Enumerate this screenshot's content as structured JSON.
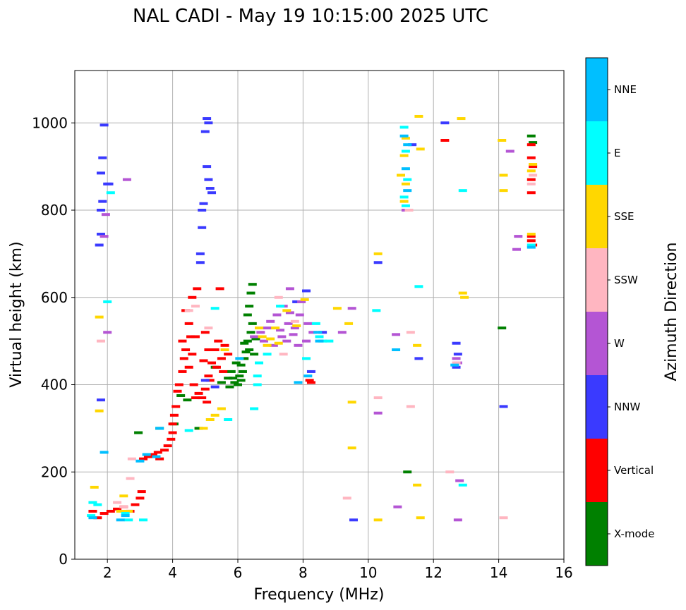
{
  "chart_data": {
    "type": "scatter",
    "title": "NAL CADI - May 19 10:15:00 2025 UTC",
    "xlabel": "Frequency (MHz)",
    "ylabel": "Virtual height (km)",
    "xlim": [
      1,
      16
    ],
    "ylim": [
      0,
      1120
    ],
    "xticks": [
      2,
      4,
      6,
      8,
      10,
      12,
      14,
      16
    ],
    "xtick_labels": [
      "2",
      "4",
      "6",
      "8",
      "10",
      "12",
      "14",
      "16"
    ],
    "yticks": [
      0,
      200,
      400,
      600,
      800,
      1000
    ],
    "ytick_labels": [
      "0",
      "200",
      "400",
      "600",
      "800",
      "1000"
    ],
    "grid": true,
    "colorbar": {
      "label": "Azimuth Direction",
      "categories": [
        "X-mode",
        "Vertical",
        "NNW",
        "W",
        "SSW",
        "SSE",
        "E",
        "NNE"
      ],
      "colors": [
        "#008000",
        "#ff0000",
        "#3a3aff",
        "#b455d4",
        "#ffb6c1",
        "#ffd700",
        "#00ffff",
        "#00bfff"
      ]
    },
    "series": [
      {
        "name": "X-mode",
        "points": [
          [
            2.95,
            290
          ],
          [
            3.6,
            300
          ],
          [
            4.05,
            310
          ],
          [
            4.25,
            375
          ],
          [
            4.45,
            365
          ],
          [
            4.8,
            300
          ],
          [
            5.3,
            440
          ],
          [
            5.5,
            405
          ],
          [
            5.7,
            415
          ],
          [
            5.75,
            395
          ],
          [
            5.8,
            430
          ],
          [
            5.9,
            405
          ],
          [
            6.0,
            400
          ],
          [
            6.05,
            420
          ],
          [
            6.1,
            445
          ],
          [
            6.2,
            460
          ],
          [
            6.25,
            475
          ],
          [
            6.35,
            480
          ],
          [
            6.4,
            520
          ],
          [
            6.45,
            540
          ],
          [
            6.3,
            560
          ],
          [
            6.35,
            580
          ],
          [
            6.4,
            610
          ],
          [
            6.45,
            630
          ],
          [
            6.2,
            495
          ],
          [
            6.3,
            500
          ],
          [
            6.5,
            470
          ],
          [
            6.55,
            505
          ],
          [
            6.1,
            410
          ],
          [
            5.95,
            450
          ],
          [
            6.15,
            430
          ],
          [
            5.85,
            415
          ],
          [
            11.2,
            200
          ],
          [
            14.1,
            530
          ],
          [
            15.0,
            970
          ],
          [
            15.05,
            955
          ]
        ]
      },
      {
        "name": "Vertical",
        "points": [
          [
            1.55,
            110
          ],
          [
            1.7,
            95
          ],
          [
            1.9,
            105
          ],
          [
            2.1,
            110
          ],
          [
            2.3,
            115
          ],
          [
            2.5,
            120
          ],
          [
            2.7,
            110
          ],
          [
            2.85,
            125
          ],
          [
            3.0,
            140
          ],
          [
            3.05,
            155
          ],
          [
            3.1,
            230
          ],
          [
            3.25,
            235
          ],
          [
            3.4,
            240
          ],
          [
            3.55,
            245
          ],
          [
            3.6,
            230
          ],
          [
            3.75,
            250
          ],
          [
            3.85,
            260
          ],
          [
            3.95,
            275
          ],
          [
            4.0,
            290
          ],
          [
            4.0,
            310
          ],
          [
            4.05,
            330
          ],
          [
            4.1,
            350
          ],
          [
            4.15,
            385
          ],
          [
            4.2,
            400
          ],
          [
            4.3,
            430
          ],
          [
            4.35,
            460
          ],
          [
            4.4,
            480
          ],
          [
            4.5,
            440
          ],
          [
            4.55,
            510
          ],
          [
            4.6,
            470
          ],
          [
            4.65,
            400
          ],
          [
            4.7,
            370
          ],
          [
            4.8,
            380
          ],
          [
            4.9,
            370
          ],
          [
            5.0,
            390
          ],
          [
            5.05,
            360
          ],
          [
            5.1,
            420
          ],
          [
            5.2,
            450
          ],
          [
            5.3,
            480
          ],
          [
            5.4,
            500
          ],
          [
            5.5,
            460
          ],
          [
            5.55,
            430
          ],
          [
            5.6,
            490
          ],
          [
            5.7,
            470
          ],
          [
            4.6,
            600
          ],
          [
            4.75,
            620
          ],
          [
            4.5,
            540
          ],
          [
            4.3,
            500
          ],
          [
            4.7,
            510
          ],
          [
            4.95,
            455
          ],
          [
            5.15,
            410
          ],
          [
            5.45,
            620
          ],
          [
            4.4,
            570
          ],
          [
            5.0,
            520
          ],
          [
            5.1,
            480
          ],
          [
            5.35,
            440
          ],
          [
            8.2,
            410
          ],
          [
            8.25,
            405
          ],
          [
            12.35,
            960
          ],
          [
            15.0,
            950
          ],
          [
            15.0,
            920
          ],
          [
            15.05,
            900
          ],
          [
            15.0,
            870
          ],
          [
            15.0,
            840
          ],
          [
            15.0,
            740
          ],
          [
            15.0,
            730
          ],
          [
            15.05,
            720
          ]
        ]
      },
      {
        "name": "NNW",
        "points": [
          [
            1.75,
            720
          ],
          [
            1.8,
            745
          ],
          [
            1.8,
            800
          ],
          [
            1.85,
            820
          ],
          [
            1.8,
            885
          ],
          [
            1.85,
            920
          ],
          [
            1.9,
            995
          ],
          [
            2.0,
            860
          ],
          [
            2.05,
            860
          ],
          [
            1.8,
            365
          ],
          [
            5.05,
            1010
          ],
          [
            5.1,
            1000
          ],
          [
            5.0,
            980
          ],
          [
            5.05,
            900
          ],
          [
            5.1,
            870
          ],
          [
            5.15,
            850
          ],
          [
            5.2,
            840
          ],
          [
            4.95,
            815
          ],
          [
            4.9,
            800
          ],
          [
            4.9,
            760
          ],
          [
            4.85,
            700
          ],
          [
            4.85,
            680
          ],
          [
            5.0,
            410
          ],
          [
            5.3,
            395
          ],
          [
            7.8,
            590
          ],
          [
            8.25,
            430
          ],
          [
            8.1,
            615
          ],
          [
            8.6,
            520
          ],
          [
            9.55,
            90
          ],
          [
            10.3,
            680
          ],
          [
            11.35,
            950
          ],
          [
            11.55,
            460
          ],
          [
            12.35,
            1000
          ],
          [
            12.7,
            495
          ],
          [
            12.7,
            440
          ],
          [
            12.75,
            470
          ],
          [
            14.15,
            350
          ]
        ]
      },
      {
        "name": "W",
        "points": [
          [
            1.9,
            740
          ],
          [
            1.95,
            790
          ],
          [
            2.6,
            870
          ],
          [
            2.0,
            520
          ],
          [
            6.5,
            510
          ],
          [
            6.7,
            520
          ],
          [
            6.8,
            500
          ],
          [
            6.9,
            530
          ],
          [
            7.0,
            545
          ],
          [
            7.1,
            490
          ],
          [
            7.2,
            560
          ],
          [
            7.3,
            525
          ],
          [
            7.35,
            510
          ],
          [
            7.4,
            580
          ],
          [
            7.5,
            500
          ],
          [
            7.55,
            540
          ],
          [
            7.6,
            565
          ],
          [
            7.7,
            515
          ],
          [
            7.75,
            530
          ],
          [
            7.85,
            490
          ],
          [
            7.9,
            560
          ],
          [
            7.95,
            590
          ],
          [
            7.6,
            620
          ],
          [
            8.1,
            500
          ],
          [
            8.15,
            540
          ],
          [
            8.3,
            520
          ],
          [
            9.2,
            520
          ],
          [
            9.5,
            575
          ],
          [
            10.3,
            335
          ],
          [
            10.85,
            515
          ],
          [
            10.9,
            120
          ],
          [
            11.15,
            800
          ],
          [
            12.7,
            460
          ],
          [
            12.75,
            450
          ],
          [
            12.8,
            180
          ],
          [
            12.75,
            90
          ],
          [
            14.35,
            935
          ],
          [
            14.55,
            710
          ],
          [
            14.6,
            740
          ]
        ]
      },
      {
        "name": "SSW",
        "points": [
          [
            1.8,
            500
          ],
          [
            2.5,
            120
          ],
          [
            2.7,
            185
          ],
          [
            2.75,
            230
          ],
          [
            2.3,
            130
          ],
          [
            4.5,
            570
          ],
          [
            4.7,
            580
          ],
          [
            5.1,
            530
          ],
          [
            7.25,
            600
          ],
          [
            7.4,
            470
          ],
          [
            7.75,
            545
          ],
          [
            9.35,
            140
          ],
          [
            10.3,
            370
          ],
          [
            11.3,
            520
          ],
          [
            11.3,
            350
          ],
          [
            11.25,
            800
          ],
          [
            12.5,
            200
          ],
          [
            12.7,
            450
          ],
          [
            14.15,
            95
          ],
          [
            15.0,
            860
          ],
          [
            15.05,
            880
          ]
        ]
      },
      {
        "name": "SSE",
        "points": [
          [
            1.6,
            165
          ],
          [
            1.75,
            555
          ],
          [
            1.75,
            340
          ],
          [
            2.4,
            110
          ],
          [
            2.5,
            145
          ],
          [
            2.65,
            110
          ],
          [
            4.95,
            300
          ],
          [
            5.15,
            320
          ],
          [
            5.3,
            330
          ],
          [
            5.5,
            345
          ],
          [
            5.6,
            480
          ],
          [
            6.65,
            530
          ],
          [
            6.75,
            510
          ],
          [
            6.9,
            490
          ],
          [
            7.0,
            505
          ],
          [
            7.15,
            530
          ],
          [
            7.25,
            495
          ],
          [
            7.5,
            570
          ],
          [
            7.8,
            535
          ],
          [
            8.05,
            595
          ],
          [
            9.05,
            575
          ],
          [
            9.4,
            540
          ],
          [
            9.5,
            360
          ],
          [
            9.5,
            255
          ],
          [
            10.3,
            700
          ],
          [
            10.3,
            90
          ],
          [
            11.0,
            880
          ],
          [
            11.15,
            965
          ],
          [
            11.1,
            925
          ],
          [
            11.15,
            860
          ],
          [
            11.1,
            820
          ],
          [
            11.5,
            490
          ],
          [
            11.5,
            170
          ],
          [
            11.55,
            1015
          ],
          [
            11.6,
            940
          ],
          [
            11.6,
            95
          ],
          [
            12.85,
            1010
          ],
          [
            12.9,
            610
          ],
          [
            12.95,
            600
          ],
          [
            14.1,
            960
          ],
          [
            14.15,
            880
          ],
          [
            14.15,
            845
          ],
          [
            15.0,
            890
          ],
          [
            15.05,
            905
          ],
          [
            15.0,
            745
          ]
        ]
      },
      {
        "name": "E",
        "points": [
          [
            1.5,
            100
          ],
          [
            1.55,
            130
          ],
          [
            1.7,
            125
          ],
          [
            2.0,
            590
          ],
          [
            2.1,
            840
          ],
          [
            2.55,
            105
          ],
          [
            2.65,
            90
          ],
          [
            3.1,
            90
          ],
          [
            4.5,
            295
          ],
          [
            5.3,
            575
          ],
          [
            5.7,
            320
          ],
          [
            6.5,
            345
          ],
          [
            6.6,
            400
          ],
          [
            6.6,
            420
          ],
          [
            6.65,
            450
          ],
          [
            6.9,
            470
          ],
          [
            7.3,
            580
          ],
          [
            8.1,
            460
          ],
          [
            8.4,
            540
          ],
          [
            8.5,
            510
          ],
          [
            8.6,
            500
          ],
          [
            8.8,
            500
          ],
          [
            10.25,
            570
          ],
          [
            11.1,
            990
          ],
          [
            11.15,
            935
          ],
          [
            11.2,
            870
          ],
          [
            11.1,
            830
          ],
          [
            11.15,
            810
          ],
          [
            11.55,
            625
          ],
          [
            12.9,
            845
          ],
          [
            12.9,
            170
          ],
          [
            15.0,
            720
          ]
        ]
      },
      {
        "name": "NNE",
        "points": [
          [
            1.55,
            95
          ],
          [
            1.9,
            245
          ],
          [
            2.4,
            90
          ],
          [
            2.55,
            100
          ],
          [
            3.0,
            225
          ],
          [
            3.2,
            240
          ],
          [
            3.5,
            235
          ],
          [
            3.6,
            300
          ],
          [
            6.05,
            460
          ],
          [
            7.85,
            405
          ],
          [
            8.15,
            420
          ],
          [
            8.45,
            520
          ],
          [
            8.5,
            500
          ],
          [
            10.85,
            480
          ],
          [
            11.1,
            970
          ],
          [
            11.2,
            950
          ],
          [
            11.15,
            895
          ],
          [
            11.2,
            845
          ],
          [
            12.65,
            445
          ],
          [
            15.0,
            715
          ]
        ]
      }
    ]
  }
}
